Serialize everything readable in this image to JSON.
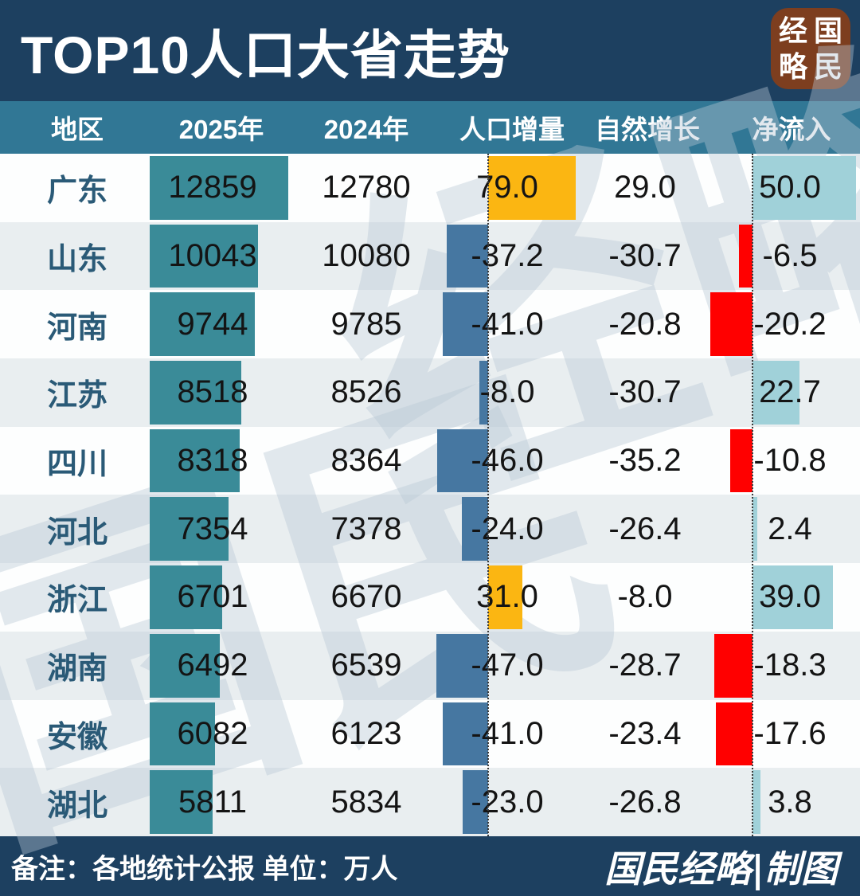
{
  "header": {
    "title": "TOP10人口大省走势",
    "logo": {
      "top_left": "经",
      "top_right": "国",
      "bottom_left": "略",
      "bottom_right": "民"
    }
  },
  "columns": {
    "region": "地区",
    "y2025": "2025年",
    "y2024": "2024年",
    "increment": "人口增量",
    "natural": "自然增长",
    "net": "净流入"
  },
  "watermark": {
    "part1": "国民",
    "part2": "经略"
  },
  "footer": {
    "note": "备注：各地统计公报 单位：万人",
    "credit": "国民经略|制图"
  },
  "colors": {
    "header_bg": "#1d4060",
    "subheader_bg": "#317795",
    "row_alt_bg": "#e9eef0",
    "bar_2025": "#3a8b98",
    "increment_positive": "#fbb612",
    "increment_negative": "#4677a1",
    "net_positive": "#a0d1d9",
    "net_negative": "#ff0000",
    "region_text": "#2a5a77",
    "logo_bg": "#7d3e1f"
  },
  "chart_data": {
    "type": "table",
    "title": "TOP10人口大省走势",
    "unit": "万人",
    "source": "各地统计公报",
    "columns": [
      "地区",
      "2025年",
      "2024年",
      "人口增量",
      "自然增长",
      "净流入"
    ],
    "embedded_bars": {
      "2025年": "teal bar, length proportional to population",
      "人口增量": "diverging bar on dotted zero axis: positive amber right, negative slate-blue left",
      "净流入": "diverging bar on dotted zero axis: positive light-blue right, negative red left"
    },
    "rows": [
      {
        "region": "广东",
        "y2025": 12859,
        "y2024": 12780,
        "increment": 79.0,
        "natural": 29.0,
        "net_inflow": 50.0
      },
      {
        "region": "山东",
        "y2025": 10043,
        "y2024": 10080,
        "increment": -37.2,
        "natural": -30.7,
        "net_inflow": -6.5
      },
      {
        "region": "河南",
        "y2025": 9744,
        "y2024": 9785,
        "increment": -41.0,
        "natural": -20.8,
        "net_inflow": -20.2
      },
      {
        "region": "江苏",
        "y2025": 8518,
        "y2024": 8526,
        "increment": -8.0,
        "natural": -30.7,
        "net_inflow": 22.7
      },
      {
        "region": "四川",
        "y2025": 8318,
        "y2024": 8364,
        "increment": -46.0,
        "natural": -35.2,
        "net_inflow": -10.8
      },
      {
        "region": "河北",
        "y2025": 7354,
        "y2024": 7378,
        "increment": -24.0,
        "natural": -26.4,
        "net_inflow": 2.4
      },
      {
        "region": "浙江",
        "y2025": 6701,
        "y2024": 6670,
        "increment": 31.0,
        "natural": -8.0,
        "net_inflow": 39.0
      },
      {
        "region": "湖南",
        "y2025": 6492,
        "y2024": 6539,
        "increment": -47.0,
        "natural": -28.7,
        "net_inflow": -18.3
      },
      {
        "region": "安徽",
        "y2025": 6082,
        "y2024": 6123,
        "increment": -41.0,
        "natural": -23.4,
        "net_inflow": -17.6
      },
      {
        "region": "湖北",
        "y2025": 5811,
        "y2024": 5834,
        "increment": -23.0,
        "natural": -26.8,
        "net_inflow": 3.8
      }
    ]
  }
}
